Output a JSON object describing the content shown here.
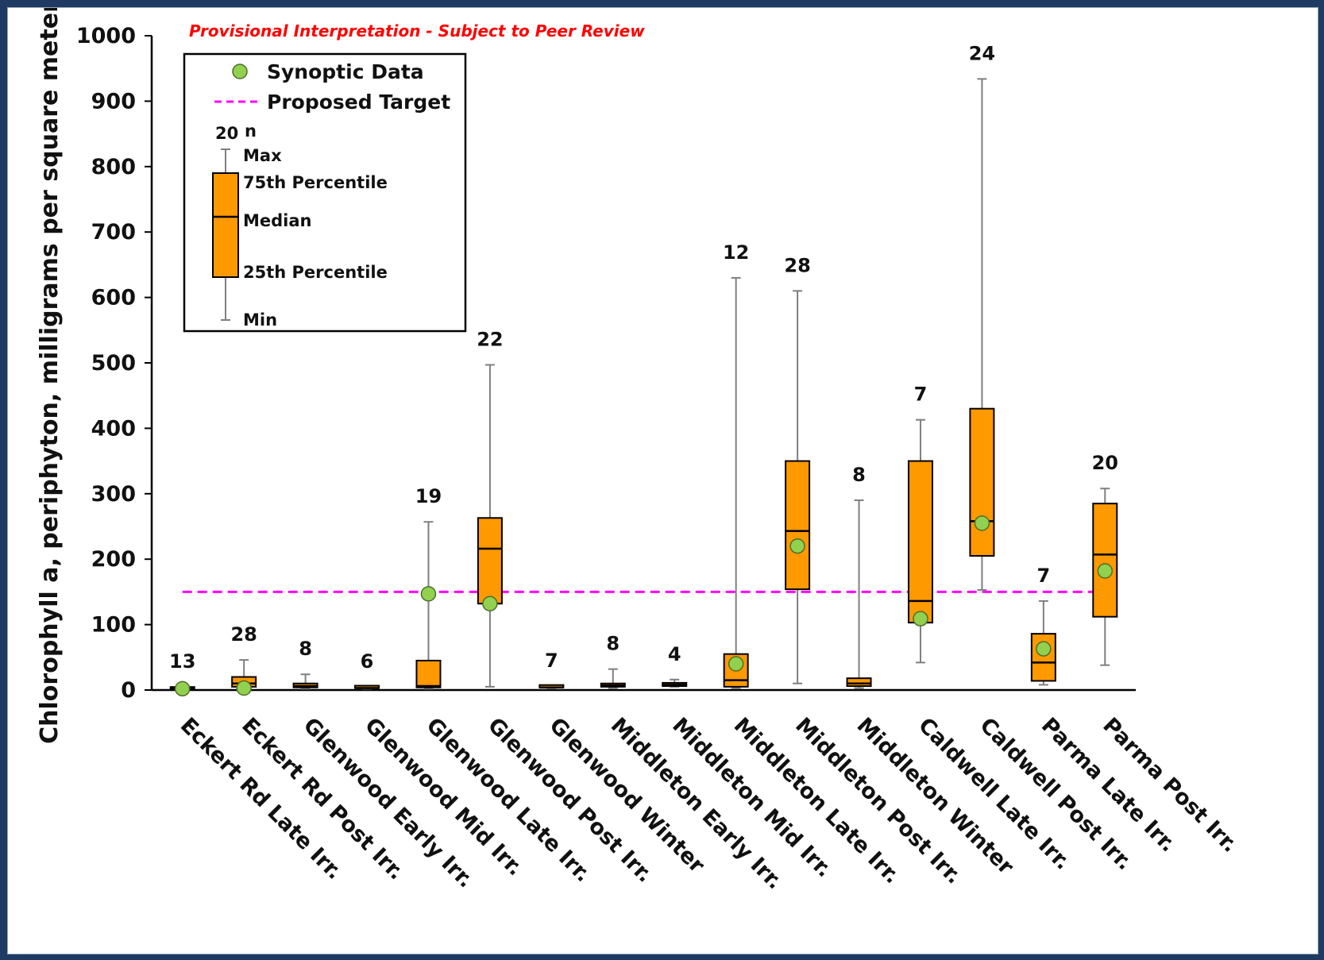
{
  "chart_data": {
    "type": "box",
    "note": "Provisional Interpretation - Subject to Peer Review",
    "ylabel": "Chlorophyll a, periphyton, milligrams per square meter",
    "xlabel": "",
    "ylim": [
      0,
      1000
    ],
    "yticks": [
      0,
      100,
      200,
      300,
      400,
      500,
      600,
      700,
      800,
      900,
      1000
    ],
    "grid": false,
    "legend": {
      "position": "top-left",
      "synoptic_label": "Synoptic Data",
      "target_label": "Proposed Target",
      "example_n": "20",
      "n_label": "n",
      "max_label": "Max",
      "p75_label": "75th Percentile",
      "median_label": "Median",
      "p25_label": "25th Percentile",
      "min_label": "Min"
    },
    "target": 150,
    "colors": {
      "box": "#ff9900",
      "synoptic": "#92d050",
      "target": "#ff00ff",
      "whisker": "#7f7f7f"
    },
    "categories": [
      "Eckert Rd Late Irr.",
      "Eckert Rd Post Irr.",
      "Glenwood Early Irr.",
      "Glenwood Mid Irr.",
      "Glenwood Late Irr.",
      "Glenwood Post Irr.",
      "Glenwood Winter",
      "Middleton Early Irr.",
      "Middleton Mid Irr.",
      "Middleton Late Irr.",
      "Middleton Post Irr.",
      "Middleton Winter",
      "Caldwell Late Irr.",
      "Caldwell Post Irr.",
      "Parma Late Irr.",
      "Parma Post Irr."
    ],
    "n": [
      "13",
      "28",
      "8",
      "6",
      "19",
      "22",
      "7",
      "8",
      "4",
      "12",
      "28",
      "8",
      "7",
      "24",
      "7",
      "20"
    ],
    "min": [
      1,
      2,
      2,
      2,
      2,
      5,
      3,
      3,
      5,
      3,
      10,
      3,
      42,
      153,
      8,
      38
    ],
    "q1": [
      1,
      5,
      4,
      3,
      4,
      132,
      4,
      5,
      6,
      5,
      154,
      6,
      103,
      205,
      14,
      112
    ],
    "median": [
      2,
      10,
      6,
      3,
      6,
      216,
      4,
      7,
      8,
      15,
      243,
      10,
      136,
      258,
      42,
      207
    ],
    "q3": [
      4,
      20,
      10,
      4,
      45,
      263,
      5,
      10,
      11,
      55,
      350,
      18,
      350,
      430,
      86,
      285
    ],
    "max": [
      5,
      46,
      24,
      5,
      257,
      497,
      6,
      32,
      16,
      630,
      610,
      290,
      413,
      934,
      136,
      308
    ],
    "synoptic": [
      2,
      3,
      null,
      null,
      147,
      132,
      null,
      null,
      null,
      40,
      220,
      null,
      109,
      255,
      63,
      182
    ]
  }
}
